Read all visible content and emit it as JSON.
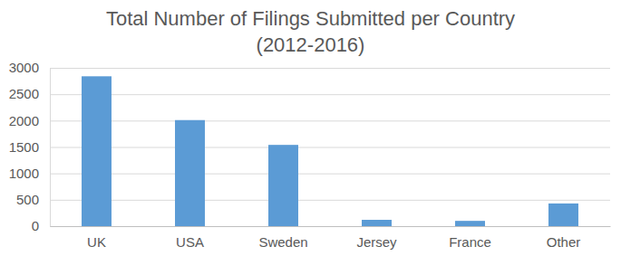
{
  "chart_data": {
    "type": "bar",
    "title": "Total Number of Filings Submitted per Country (2012-2016)",
    "categories": [
      "UK",
      "USA",
      "Sweden",
      "Jersey",
      "France",
      "Other"
    ],
    "values": [
      2840,
      2010,
      1540,
      120,
      100,
      430
    ],
    "color": "#5b9bd5",
    "ylim": [
      0,
      3000
    ],
    "yticks": [
      0,
      500,
      1000,
      1500,
      2000,
      2500,
      3000
    ],
    "grid": true
  }
}
